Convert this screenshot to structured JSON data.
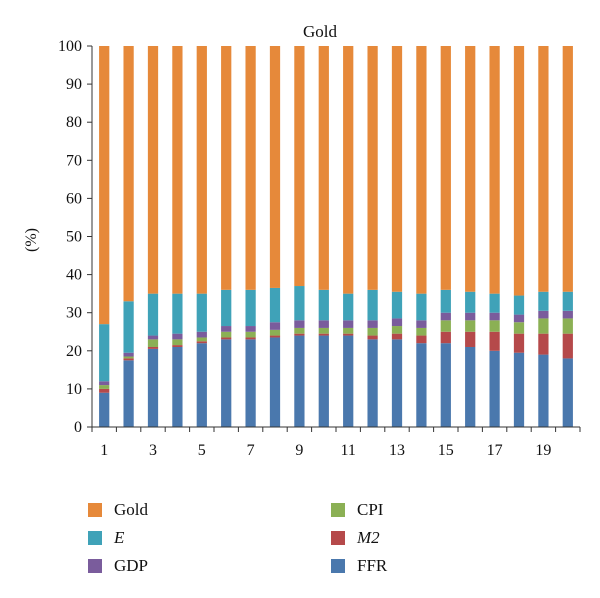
{
  "chart_data": {
    "type": "bar",
    "stacked": true,
    "title": "Gold",
    "xlabel": "",
    "ylabel": "(%)",
    "ylim": [
      0,
      100
    ],
    "yticks": [
      0,
      10,
      20,
      30,
      40,
      50,
      60,
      70,
      80,
      90,
      100
    ],
    "categories": [
      "1",
      "2",
      "3",
      "4",
      "5",
      "6",
      "7",
      "8",
      "9",
      "10",
      "11",
      "12",
      "13",
      "14",
      "15",
      "16",
      "17",
      "18",
      "19",
      "20"
    ],
    "xtick_labels": [
      "1",
      "3",
      "5",
      "7",
      "9",
      "11",
      "13",
      "15",
      "17",
      "19"
    ],
    "legend_position": "bottom",
    "series": [
      {
        "name": "FFR",
        "color": "#4a78ad",
        "italic": false,
        "values": [
          9,
          17.5,
          20.5,
          21,
          22,
          23,
          23,
          23.5,
          24,
          24,
          24,
          23,
          23,
          22,
          22,
          21,
          20,
          19.5,
          19,
          18
        ]
      },
      {
        "name": "M2",
        "color": "#b5494a",
        "italic": true,
        "values": [
          1,
          0.5,
          0.5,
          0.5,
          0.5,
          0.5,
          0.5,
          0.5,
          0.5,
          0.5,
          0.5,
          1,
          1.5,
          2,
          3,
          4,
          5,
          5,
          5.5,
          6.5
        ]
      },
      {
        "name": "CPI",
        "color": "#8bb054",
        "italic": false,
        "values": [
          1,
          0.5,
          2,
          1.5,
          1,
          1.5,
          1.5,
          1.5,
          1.5,
          1.5,
          1.5,
          2,
          2,
          2,
          3,
          3,
          3,
          3,
          4,
          4
        ]
      },
      {
        "name": "GDP",
        "color": "#7a5c9c",
        "italic": false,
        "values": [
          1,
          1,
          1,
          1.5,
          1.5,
          1.5,
          1.5,
          2,
          2,
          2,
          2,
          2,
          2,
          2,
          2,
          2,
          2,
          2,
          2,
          2
        ]
      },
      {
        "name": "E",
        "color": "#3fa2b8",
        "italic": true,
        "values": [
          15,
          13.5,
          11,
          10.5,
          10,
          9.5,
          9.5,
          9,
          9,
          8,
          7,
          8,
          7,
          7,
          6,
          5.5,
          5,
          5,
          5,
          5
        ]
      },
      {
        "name": "Gold",
        "color": "#e6893a",
        "italic": false,
        "values": [
          73,
          67,
          65,
          65,
          65,
          64,
          64,
          63.5,
          63,
          64,
          65,
          64,
          64.5,
          65,
          64,
          64.5,
          65,
          65.5,
          64.5,
          64.5
        ]
      }
    ],
    "legend": [
      {
        "series": "Gold",
        "col": 0,
        "row": 0
      },
      {
        "series": "E",
        "col": 0,
        "row": 1
      },
      {
        "series": "GDP",
        "col": 0,
        "row": 2
      },
      {
        "series": "CPI",
        "col": 1,
        "row": 0
      },
      {
        "series": "M2",
        "col": 1,
        "row": 1
      },
      {
        "series": "FFR",
        "col": 1,
        "row": 2
      }
    ]
  }
}
